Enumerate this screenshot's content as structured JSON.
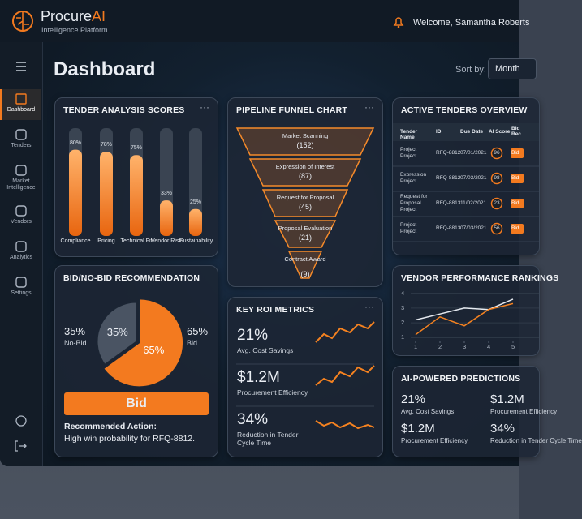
{
  "header": {
    "brand": "Procure",
    "brand_accent": "AI",
    "tagline": "Intelligence Platform",
    "welcome": "Welcome, Samantha Roberts"
  },
  "nav": [
    "Dashboard",
    "Tenders",
    "Market Intelligence",
    "Vendors",
    "Analytics",
    "Settings"
  ],
  "page": {
    "title": "Dashboard",
    "sort_label": "Sort by:",
    "sort_value": "Month"
  },
  "tender_scores": {
    "title": "TENDER ANALYSIS SCORES",
    "bars": [
      {
        "label": "Compliance",
        "value": 80,
        "value_label": "80%"
      },
      {
        "label": "Pricing",
        "value": 78,
        "value_label": "78%"
      },
      {
        "label": "Technical Fit",
        "value": 75,
        "value_label": "75%"
      },
      {
        "label": "Vendor Risk",
        "value": 33,
        "value_label": "33%"
      },
      {
        "label": "Sustainability",
        "value": 25,
        "value_label": "25%"
      }
    ]
  },
  "funnel": {
    "title": "PIPELINE FUNNEL CHART",
    "stages": [
      {
        "label": "Market Scanning",
        "count": "(152)"
      },
      {
        "label": "Expression of Interest",
        "count": "(87)"
      },
      {
        "label": "Request for Proposal",
        "count": "(45)"
      },
      {
        "label": "Proposal Evaluation",
        "count": "(21)"
      },
      {
        "label": "Contract Award",
        "count": "(9)"
      }
    ]
  },
  "tenders": {
    "title": "ACTIVE TENDERS OVERVIEW",
    "columns": [
      "Tender Name",
      "ID",
      "Due Date",
      "AI Score",
      "Bid Rec"
    ],
    "rows": [
      [
        "Project Project",
        "RFQ-8812",
        "07/01/2021",
        "96",
        "Bid"
      ],
      [
        "Expression Project",
        "RFQ-8812",
        "07/03/2021",
        "98",
        "Bid"
      ],
      [
        "Request for Proposal Project",
        "RFQ-8813",
        "11/02/2021",
        "23",
        "Bid"
      ],
      [
        "Project Project",
        "RFQ-8813",
        "07/03/2021",
        "56",
        "Bid"
      ]
    ]
  },
  "recommendation": {
    "title": "BID/NO-BID RECOMMENDATION",
    "slices": [
      {
        "label": "No-Bid",
        "value": 35,
        "value_label": "35%",
        "color": "#4a5463"
      },
      {
        "label": "Bid",
        "value": 65,
        "value_label": "65%",
        "color": "#f37a1f"
      }
    ],
    "button": "Bid",
    "action_title": "Recommended Action:",
    "action_text": "High win probability for RFQ-8812."
  },
  "roi": {
    "title": "KEY ROI METRICS",
    "metrics": [
      {
        "value": "21%",
        "label": "Avg. Cost Savings"
      },
      {
        "value": "$1.2M",
        "label": "Procurement Efficiency"
      },
      {
        "value": "34%",
        "label": "Reduction in Tender Cycle Time"
      }
    ]
  },
  "vendor": {
    "title": "VENDOR PERFORMANCE RANKINGS",
    "x": [
      1,
      2,
      3,
      4,
      5
    ],
    "xlim": [
      0.9,
      6.4
    ],
    "ylim": [
      0.8,
      4.2
    ],
    "xticks": [
      1,
      2,
      3,
      4,
      5
    ],
    "yticks": [
      1,
      2,
      3,
      4
    ],
    "series": [
      {
        "color": "#e6eaf0",
        "values": [
          2.2,
          2.6,
          3.0,
          2.9,
          3.6
        ]
      },
      {
        "color": "#f58220",
        "values": [
          1.2,
          2.4,
          1.8,
          2.9,
          3.3
        ]
      }
    ]
  },
  "predictions": {
    "title": "AI-POWERED PREDICTIONS",
    "metrics": [
      {
        "value": "21%",
        "label": "Avg. Cost Savings"
      },
      {
        "value": "$1.2M",
        "label": "Procurement Efficiency"
      },
      {
        "value": "$1.2M",
        "label": "Procurement Efficiency"
      },
      {
        "value": "34%",
        "label": "Reduction in Tender Cycle Time"
      }
    ]
  }
}
